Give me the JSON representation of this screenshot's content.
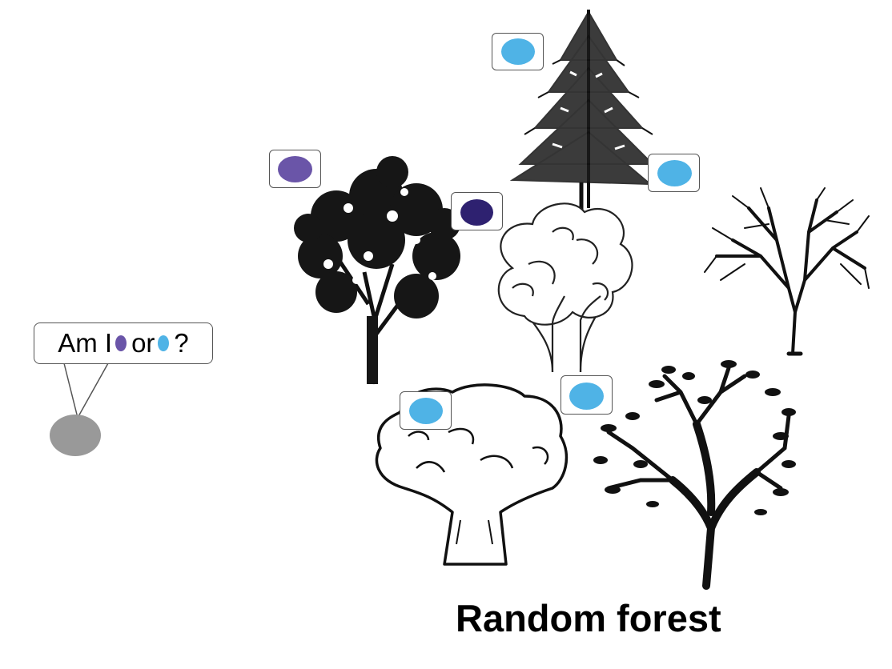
{
  "question": {
    "text_before": "Am I",
    "text_middle": "or",
    "text_after": "?",
    "dot_a_color": "#6a55a8",
    "dot_b_color": "#4fb3e6"
  },
  "sample_point": {
    "color": "#999999",
    "icon": "gray-ellipse"
  },
  "trees": [
    {
      "id": "spruce",
      "icon": "spruce-tree-icon"
    },
    {
      "id": "leafy",
      "icon": "leafy-tree-icon"
    },
    {
      "id": "cartoon",
      "icon": "cartoon-tree-icon"
    },
    {
      "id": "bare",
      "icon": "bare-tree-icon"
    },
    {
      "id": "oak",
      "icon": "oak-outline-tree-icon"
    },
    {
      "id": "silhouette",
      "icon": "silhouette-tree-icon"
    }
  ],
  "votes": [
    {
      "tree": "spruce",
      "color": "#4fb3e6"
    },
    {
      "tree": "leafy",
      "color": "#6a55a8"
    },
    {
      "tree": "cartoon",
      "color": "#2e2170"
    },
    {
      "tree": "bare",
      "color": "#4fb3e6"
    },
    {
      "tree": "oak",
      "color": "#4fb3e6"
    },
    {
      "tree": "silhouette",
      "color": "#4fb3e6"
    }
  ],
  "title": "Random forest"
}
